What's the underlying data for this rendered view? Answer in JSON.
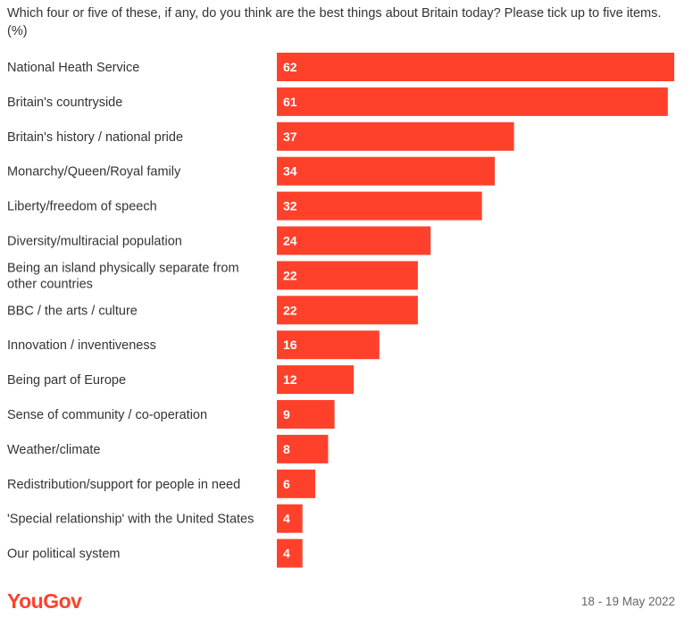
{
  "header": {
    "title": "Which four or five of these, if any, do you think are the best things about Britain today? Please tick up to five items. (%)"
  },
  "footer": {
    "logo_text": "YouGov",
    "date": "18 - 19 May 2022"
  },
  "colors": {
    "bar": "#ff412c",
    "bar_label": "#ffffff",
    "text": "#333333"
  },
  "chart_data": {
    "type": "bar",
    "orientation": "horizontal",
    "categories": [
      "National Heath Service",
      "Britain's countryside",
      "Britain's history / national pride",
      "Monarchy/Queen/Royal family",
      "Liberty/freedom of speech",
      "Diversity/multiracial population",
      "Being an island physically separate from other countries",
      "BBC / the arts / culture",
      "Innovation / inventiveness",
      "Being part of Europe",
      "Sense of community / co-operation",
      "Weather/climate",
      "Redistribution/support for people in need",
      "'Special relationship' with the United States",
      "Our political system"
    ],
    "values": [
      62,
      61,
      37,
      34,
      32,
      24,
      22,
      22,
      16,
      12,
      9,
      8,
      6,
      4,
      4
    ],
    "xlim": [
      0,
      62
    ],
    "grid": false,
    "legend": "none"
  }
}
